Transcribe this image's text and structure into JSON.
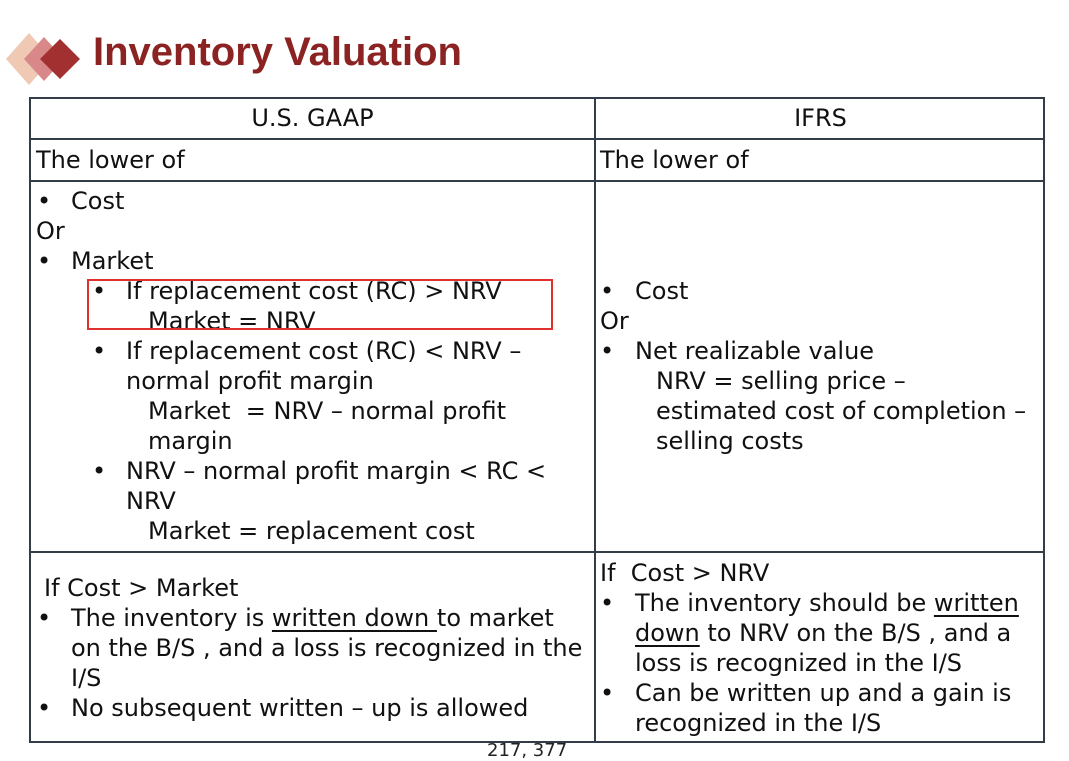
{
  "slide": {
    "title": "Inventory Valuation",
    "page_number": "217, 377"
  },
  "colors": {
    "title": "#8b2323",
    "logo_dark": "#a33030",
    "logo_mid": "#d9888a",
    "logo_light": "#efc9b4",
    "highlight_box": "#e03030",
    "grid": "#333d4a"
  },
  "table": {
    "headers": [
      "U.S. GAAP",
      "IFRS"
    ],
    "gaap": {
      "lower_of": "The lower of",
      "cost": "Cost",
      "or": "Or",
      "market": "Market",
      "rule1_l1": "If replacement cost (RC) > NRV",
      "rule1_l2": "Market = NRV",
      "rule2_l1": "If replacement cost (RC) < NRV –",
      "rule2_l2": "normal profit margin",
      "rule2_l3": "Market  = NRV – normal profit",
      "rule2_l4": "margin",
      "rule3_l1": "NRV – normal profit margin < RC <",
      "rule3_l2": "NRV",
      "rule3_l3": "Market = replacement cost",
      "condition": "If Cost > Market",
      "wd_l1_pre": "The inventory is ",
      "wd_l1_u": "written down ",
      "wd_l1_post": "to market",
      "wd_l2": "on the B/S , and a loss is recognized in the",
      "wd_l3": "I/S",
      "no_writeup": "No subsequent written – up is allowed"
    },
    "ifrs": {
      "lower_of": "The lower of",
      "cost": "Cost",
      "or": "Or",
      "nrv": "Net realizable value",
      "nrv_l1": "NRV = selling price –",
      "nrv_l2": "estimated cost of completion –",
      "nrv_l3": "selling costs",
      "condition": "If  Cost > NRV",
      "wd_l1_pre": "The inventory should be ",
      "wd_l1_u": "written",
      "wd_l2_u": "down",
      "wd_l2_post": " to NRV on the B/S , and a",
      "wd_l3": "loss is recognized in the I/S",
      "up_l1": "Can be written up and a gain is",
      "up_l2": "recognized in the I/S"
    }
  }
}
